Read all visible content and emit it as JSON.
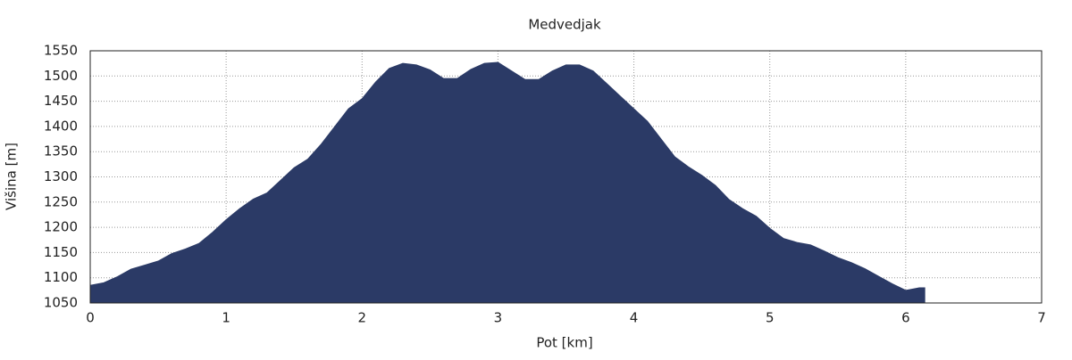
{
  "chart_data": {
    "type": "area",
    "title": "Medvedjak",
    "x_label": "Pot [km]",
    "y_label": "Višina [m]",
    "x": [
      0,
      0.1,
      0.2,
      0.3,
      0.4,
      0.5,
      0.6,
      0.7,
      0.8,
      0.9,
      1.0,
      1.1,
      1.2,
      1.3,
      1.4,
      1.5,
      1.6,
      1.7,
      1.8,
      1.9,
      2.0,
      2.1,
      2.2,
      2.3,
      2.4,
      2.5,
      2.6,
      2.7,
      2.8,
      2.9,
      3.0,
      3.1,
      3.2,
      3.3,
      3.4,
      3.5,
      3.6,
      3.7,
      3.8,
      3.9,
      4.0,
      4.1,
      4.2,
      4.3,
      4.4,
      4.5,
      4.6,
      4.7,
      4.8,
      4.9,
      5.0,
      5.1,
      5.2,
      5.3,
      5.4,
      5.5,
      5.6,
      5.7,
      5.8,
      5.9,
      6.0,
      6.1,
      6.14
    ],
    "values": [
      1085,
      1090,
      1102,
      1117,
      1125,
      1133,
      1148,
      1157,
      1168,
      1190,
      1215,
      1237,
      1256,
      1268,
      1293,
      1318,
      1335,
      1365,
      1400,
      1435,
      1455,
      1488,
      1515,
      1525,
      1522,
      1512,
      1495,
      1495,
      1513,
      1525,
      1527,
      1510,
      1493,
      1493,
      1510,
      1522,
      1522,
      1510,
      1485,
      1460,
      1435,
      1410,
      1375,
      1340,
      1320,
      1303,
      1283,
      1255,
      1237,
      1222,
      1198,
      1178,
      1170,
      1165,
      1153,
      1140,
      1130,
      1118,
      1103,
      1088,
      1075,
      1080,
      1080
    ],
    "color": "#2b3a66",
    "xlim": [
      0,
      7
    ],
    "xticks": [
      0,
      1,
      2,
      3,
      4,
      5,
      6,
      7
    ],
    "ylim": [
      1050,
      1550
    ],
    "yticks": [
      1050,
      1100,
      1150,
      1200,
      1250,
      1300,
      1350,
      1400,
      1450,
      1500,
      1550
    ],
    "grid": true
  }
}
